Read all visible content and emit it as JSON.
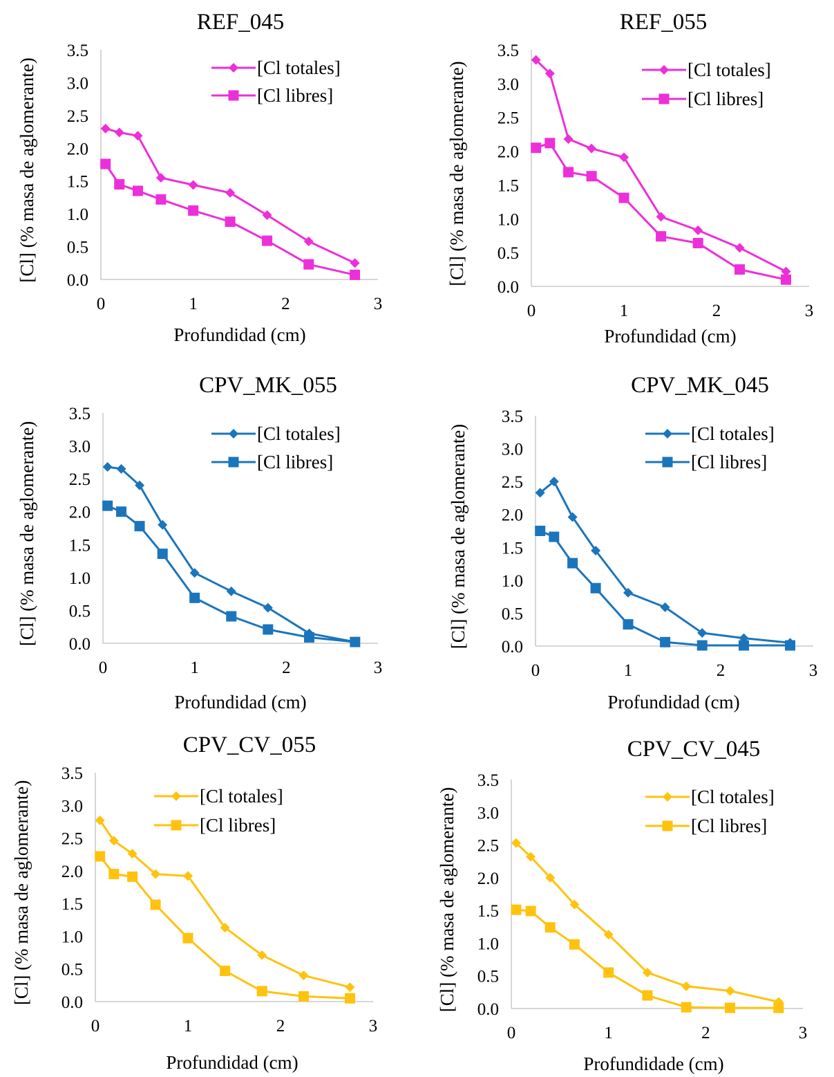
{
  "chart_data": [
    {
      "type": "line",
      "title": "REF_045",
      "xlabel": "Profundidad (cm)",
      "ylabel": "[Cl] (% masa de aglomerante)",
      "xlim": [
        0,
        3
      ],
      "ylim": [
        0,
        3.5
      ],
      "xticks": [
        "0",
        "1",
        "2",
        "3"
      ],
      "yticks": [
        "0.0",
        "0.5",
        "1.0",
        "1.5",
        "2.0",
        "2.5",
        "3.0",
        "3.5"
      ],
      "grid": false,
      "legend_position": "top-right",
      "color": "#ED2FD9",
      "series": [
        {
          "name": "[Cl totales]",
          "marker": "diamond",
          "x": [
            0.05,
            0.2,
            0.4,
            0.65,
            1.0,
            1.4,
            1.8,
            2.25,
            2.75
          ],
          "y": [
            2.3,
            2.24,
            2.19,
            1.55,
            1.44,
            1.32,
            0.98,
            0.58,
            0.25
          ]
        },
        {
          "name": "[Cl libres]",
          "marker": "square",
          "x": [
            0.05,
            0.2,
            0.4,
            0.65,
            1.0,
            1.4,
            1.8,
            2.25,
            2.75
          ],
          "y": [
            1.76,
            1.45,
            1.35,
            1.22,
            1.05,
            0.88,
            0.59,
            0.23,
            0.07
          ]
        }
      ]
    },
    {
      "type": "line",
      "title": "REF_055",
      "xlabel": "Profundidad (cm)",
      "ylabel": "[Cl] (% masa de aglomerante)",
      "xlim": [
        0,
        3
      ],
      "ylim": [
        0,
        3.5
      ],
      "xticks": [
        "0",
        "1",
        "2",
        "3"
      ],
      "yticks": [
        "0.0",
        "0.5",
        "1.0",
        "1.5",
        "2.0",
        "2.5",
        "3.0",
        "3.5"
      ],
      "grid": false,
      "legend_position": "top-right",
      "color": "#ED2FD9",
      "series": [
        {
          "name": "[Cl totales]",
          "marker": "diamond",
          "x": [
            0.05,
            0.2,
            0.4,
            0.65,
            1.0,
            1.4,
            1.8,
            2.25,
            2.75
          ],
          "y": [
            3.35,
            3.15,
            2.18,
            2.04,
            1.91,
            1.03,
            0.83,
            0.57,
            0.22
          ]
        },
        {
          "name": "[Cl libres]",
          "marker": "square",
          "x": [
            0.05,
            0.2,
            0.4,
            0.65,
            1.0,
            1.4,
            1.8,
            2.25,
            2.75
          ],
          "y": [
            2.05,
            2.12,
            1.69,
            1.63,
            1.31,
            0.74,
            0.64,
            0.25,
            0.1
          ]
        }
      ]
    },
    {
      "type": "line",
      "title": "CPV_MK_055",
      "xlabel": "Profundidad (cm)",
      "ylabel": "[Cl] (% masa de aglomerante)",
      "xlim": [
        0,
        3
      ],
      "ylim": [
        0,
        3.5
      ],
      "xticks": [
        "0",
        "1",
        "2",
        "3"
      ],
      "yticks": [
        "0.0",
        "0.5",
        "1.0",
        "1.5",
        "2.0",
        "2.5",
        "3.0",
        "3.5"
      ],
      "grid": false,
      "legend_position": "top-right",
      "color": "#1B75BC",
      "series": [
        {
          "name": "[Cl totales]",
          "marker": "diamond",
          "x": [
            0.05,
            0.2,
            0.4,
            0.65,
            1.0,
            1.4,
            1.8,
            2.25,
            2.75
          ],
          "y": [
            2.68,
            2.65,
            2.4,
            1.8,
            1.07,
            0.79,
            0.54,
            0.15,
            0.02
          ]
        },
        {
          "name": "[Cl libres]",
          "marker": "square",
          "x": [
            0.05,
            0.2,
            0.4,
            0.65,
            1.0,
            1.4,
            1.8,
            2.25,
            2.75
          ],
          "y": [
            2.09,
            2.0,
            1.78,
            1.36,
            0.69,
            0.41,
            0.21,
            0.09,
            0.02
          ]
        }
      ]
    },
    {
      "type": "line",
      "title": "CPV_MK_045",
      "xlabel": "Profundidad (cm)",
      "ylabel": "[Cl] (% masa de aglomerante)",
      "xlim": [
        0,
        3
      ],
      "ylim": [
        0,
        3.5
      ],
      "xticks": [
        "0",
        "1",
        "2",
        "3"
      ],
      "yticks": [
        "0.0",
        "0.5",
        "1.0",
        "1.5",
        "2.0",
        "2.5",
        "3.0",
        "3.5"
      ],
      "grid": false,
      "legend_position": "top-right",
      "color": "#1B75BC",
      "series": [
        {
          "name": "[Cl totales]",
          "marker": "diamond",
          "x": [
            0.05,
            0.2,
            0.4,
            0.65,
            1.0,
            1.4,
            1.8,
            2.25,
            2.75
          ],
          "y": [
            2.33,
            2.5,
            1.96,
            1.45,
            0.81,
            0.59,
            0.2,
            0.12,
            0.05
          ]
        },
        {
          "name": "[Cl libres]",
          "marker": "square",
          "x": [
            0.05,
            0.2,
            0.4,
            0.65,
            1.0,
            1.4,
            1.8,
            2.25,
            2.75
          ],
          "y": [
            1.75,
            1.66,
            1.26,
            0.88,
            0.33,
            0.06,
            0.01,
            0.01,
            0.01
          ]
        }
      ]
    },
    {
      "type": "line",
      "title": "CPV_CV_055",
      "xlabel": "Profundidad (cm)",
      "ylabel": "[Cl] (% masa de aglomerante)",
      "xlim": [
        0,
        3
      ],
      "ylim": [
        0,
        3.5
      ],
      "xticks": [
        "0",
        "1",
        "2",
        "3"
      ],
      "yticks": [
        "0.0",
        "0.5",
        "1.0",
        "1.5",
        "2.0",
        "2.5",
        "3.0",
        "3.5"
      ],
      "grid": false,
      "legend_position": "top-right",
      "color": "#FFC20E",
      "series": [
        {
          "name": "[Cl totales]",
          "marker": "diamond",
          "x": [
            0.05,
            0.2,
            0.4,
            0.65,
            1.0,
            1.4,
            1.8,
            2.25,
            2.75
          ],
          "y": [
            2.77,
            2.46,
            2.26,
            1.95,
            1.92,
            1.13,
            0.71,
            0.4,
            0.22
          ]
        },
        {
          "name": "[Cl libres]",
          "marker": "square",
          "x": [
            0.05,
            0.2,
            0.4,
            0.65,
            1.0,
            1.4,
            1.8,
            2.25,
            2.75
          ],
          "y": [
            2.22,
            1.95,
            1.91,
            1.48,
            0.97,
            0.47,
            0.16,
            0.08,
            0.05
          ]
        }
      ]
    },
    {
      "type": "line",
      "title": "CPV_CV_045",
      "xlabel": "Profundidade (cm)",
      "ylabel": "[Cl] (% masa de aglomerante)",
      "xlim": [
        0,
        3
      ],
      "ylim": [
        0,
        3.5
      ],
      "xticks": [
        "0",
        "1",
        "2",
        "3"
      ],
      "yticks": [
        "0.0",
        "0.5",
        "1.0",
        "1.5",
        "2.0",
        "2.5",
        "3.0",
        "3.5"
      ],
      "grid": false,
      "legend_position": "top-right",
      "color": "#FFC20E",
      "series": [
        {
          "name": "[Cl totales]",
          "marker": "diamond",
          "x": [
            0.05,
            0.2,
            0.4,
            0.65,
            1.0,
            1.4,
            1.8,
            2.25,
            2.75
          ],
          "y": [
            2.53,
            2.32,
            2.0,
            1.59,
            1.13,
            0.55,
            0.34,
            0.27,
            0.1
          ]
        },
        {
          "name": "[Cl libres]",
          "marker": "square",
          "x": [
            0.05,
            0.2,
            0.4,
            0.65,
            1.0,
            1.4,
            1.8,
            2.25,
            2.75
          ],
          "y": [
            1.51,
            1.49,
            1.24,
            0.98,
            0.55,
            0.2,
            0.02,
            0.01,
            0.01
          ]
        }
      ]
    }
  ]
}
